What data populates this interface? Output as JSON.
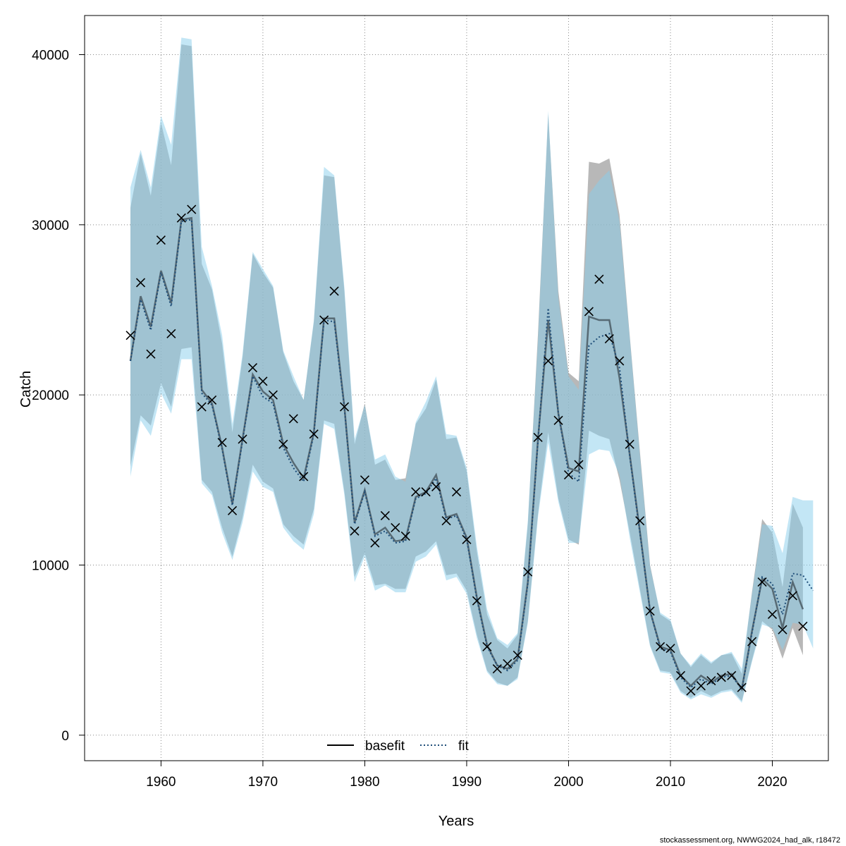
{
  "chart_data": {
    "type": "line",
    "xlabel": "Years",
    "ylabel": "Catch",
    "xlim": [
      1952.5,
      2025.5
    ],
    "ylim": [
      -1500,
      42300
    ],
    "x_ticks": [
      1960,
      1970,
      1980,
      1990,
      2000,
      2010,
      2020
    ],
    "y_ticks": [
      0,
      10000,
      20000,
      30000,
      40000
    ],
    "grid": true,
    "legend_position": "bottom-center",
    "colors": {
      "basefit_band": "#9a9a9a",
      "fit_band": "#87ceeb",
      "basefit_line": "#000000",
      "fit_line": "#1f4e79",
      "observed": "#000000"
    },
    "legend": [
      {
        "label": "basefit",
        "style": "solid"
      },
      {
        "label": "fit",
        "style": "dotted"
      }
    ],
    "basefit": {
      "name": "basefit",
      "x": [
        1957,
        1958,
        1959,
        1960,
        1961,
        1962,
        1963,
        1964,
        1965,
        1966,
        1967,
        1968,
        1969,
        1970,
        1971,
        1972,
        1973,
        1974,
        1975,
        1976,
        1977,
        1978,
        1979,
        1980,
        1981,
        1982,
        1983,
        1984,
        1985,
        1986,
        1987,
        1988,
        1989,
        1990,
        1991,
        1992,
        1993,
        1994,
        1995,
        1996,
        1997,
        1998,
        1999,
        2000,
        2001,
        2002,
        2003,
        2004,
        2005,
        2006,
        2007,
        2008,
        2009,
        2010,
        2011,
        2012,
        2013,
        2014,
        2015,
        2016,
        2017,
        2018,
        2019,
        2020,
        2021,
        2022,
        2023
      ],
      "mid": [
        22000,
        25800,
        24000,
        27300,
        25400,
        30300,
        30400,
        20300,
        19500,
        16900,
        13600,
        17400,
        21200,
        20200,
        19700,
        17100,
        16000,
        15100,
        17800,
        24500,
        24500,
        19300,
        12500,
        14400,
        11800,
        12200,
        11400,
        11500,
        14000,
        14300,
        15300,
        12800,
        13000,
        11600,
        8100,
        5300,
        4100,
        3900,
        4500,
        9000,
        17400,
        24400,
        18900,
        15700,
        15500,
        24600,
        24400,
        24400,
        21000,
        16500,
        12000,
        7300,
        5200,
        5000,
        3500,
        2900,
        3500,
        3100,
        3500,
        3600,
        2700,
        6100,
        9200,
        8600,
        6300,
        9000,
        7400
      ],
      "lo": [
        15800,
        18800,
        18200,
        20700,
        19300,
        22700,
        22800,
        15000,
        14300,
        12200,
        10500,
        12800,
        15900,
        14900,
        14500,
        12400,
        11700,
        11200,
        13300,
        18500,
        18300,
        14300,
        9300,
        10700,
        8800,
        8900,
        8600,
        8600,
        10500,
        10800,
        11400,
        9400,
        9500,
        8500,
        5900,
        3800,
        3100,
        2900,
        3400,
        6700,
        13000,
        17800,
        13900,
        11500,
        11200,
        17900,
        17600,
        17400,
        15000,
        11900,
        8600,
        5300,
        3800,
        3700,
        2600,
        2200,
        2600,
        2300,
        2600,
        2700,
        2000,
        4400,
        6700,
        6200,
        4500,
        6300,
        4700
      ],
      "hi": [
        31000,
        34200,
        31700,
        36000,
        33500,
        40600,
        40500,
        27700,
        26200,
        23000,
        17800,
        22200,
        28300,
        27200,
        26300,
        22500,
        20800,
        19700,
        24300,
        32900,
        32800,
        26100,
        17100,
        19500,
        15900,
        16200,
        15000,
        15100,
        18300,
        19200,
        20900,
        17400,
        17500,
        15500,
        10800,
        7100,
        5600,
        5100,
        5900,
        12400,
        23600,
        36500,
        26100,
        21300,
        20800,
        33700,
        33600,
        33900,
        30600,
        23500,
        16700,
        10000,
        7100,
        6700,
        4800,
        4000,
        4700,
        4200,
        4700,
        4800,
        3600,
        8400,
        12700,
        11900,
        8700,
        13600,
        12200
      ]
    },
    "fit": {
      "name": "fit",
      "x": [
        1957,
        1958,
        1959,
        1960,
        1961,
        1962,
        1963,
        1964,
        1965,
        1966,
        1967,
        1968,
        1969,
        1970,
        1971,
        1972,
        1973,
        1974,
        1975,
        1976,
        1977,
        1978,
        1979,
        1980,
        1981,
        1982,
        1983,
        1984,
        1985,
        1986,
        1987,
        1988,
        1989,
        1990,
        1991,
        1992,
        1993,
        1994,
        1995,
        1996,
        1997,
        1998,
        1999,
        2000,
        2001,
        2002,
        2003,
        2004,
        2005,
        2006,
        2007,
        2008,
        2009,
        2010,
        2011,
        2012,
        2013,
        2014,
        2015,
        2016,
        2017,
        2018,
        2019,
        2020,
        2021,
        2022,
        2023,
        2024
      ],
      "mid": [
        22000,
        25600,
        23800,
        27200,
        25200,
        30200,
        30300,
        20100,
        19400,
        16800,
        13500,
        17300,
        21100,
        19900,
        19500,
        16900,
        15700,
        14900,
        17700,
        24400,
        24300,
        19200,
        12400,
        14300,
        11700,
        12000,
        11300,
        11400,
        13900,
        14200,
        15100,
        12700,
        12900,
        11500,
        8000,
        5200,
        4100,
        3800,
        4400,
        8900,
        17300,
        25100,
        18900,
        15400,
        14900,
        22900,
        23400,
        23600,
        21600,
        16400,
        11900,
        7300,
        5100,
        4900,
        3400,
        2800,
        3300,
        3000,
        3400,
        3500,
        2700,
        6000,
        9300,
        8900,
        7100,
        9500,
        9400,
        8500
      ],
      "lo": [
        15200,
        18500,
        17600,
        20100,
        18900,
        22100,
        22100,
        14800,
        14100,
        11900,
        10300,
        12500,
        15500,
        14600,
        14300,
        12200,
        11400,
        10900,
        13000,
        18300,
        18000,
        14100,
        9000,
        10500,
        8500,
        8800,
        8400,
        8400,
        10200,
        10500,
        11200,
        9100,
        9300,
        8300,
        5700,
        3700,
        3000,
        2900,
        3300,
        6600,
        12800,
        17200,
        13700,
        11300,
        11300,
        16500,
        16800,
        16700,
        15300,
        11600,
        8400,
        5200,
        3700,
        3600,
        2500,
        2100,
        2400,
        2200,
        2500,
        2600,
        1900,
        4300,
        6500,
        6300,
        5000,
        6600,
        6500,
        5100
      ],
      "hi": [
        32200,
        34400,
        32200,
        36400,
        34700,
        41000,
        40900,
        28700,
        26400,
        23500,
        18300,
        22400,
        28400,
        27400,
        26400,
        22600,
        21100,
        19700,
        24400,
        33400,
        32900,
        26300,
        17400,
        19400,
        16200,
        16500,
        15200,
        14900,
        18400,
        19600,
        21100,
        17700,
        17600,
        15700,
        11100,
        7400,
        5700,
        5300,
        6000,
        12600,
        23200,
        36700,
        25700,
        21100,
        20300,
        31800,
        32600,
        33200,
        30200,
        23400,
        16500,
        9900,
        7200,
        6800,
        4800,
        4100,
        4800,
        4300,
        4700,
        4900,
        3900,
        8300,
        12400,
        12300,
        10700,
        14000,
        13800,
        13800
      ]
    },
    "observed": {
      "x": [
        1957,
        1958,
        1959,
        1960,
        1961,
        1962,
        1963,
        1964,
        1965,
        1966,
        1967,
        1968,
        1969,
        1970,
        1971,
        1972,
        1973,
        1974,
        1975,
        1976,
        1977,
        1978,
        1979,
        1980,
        1981,
        1982,
        1983,
        1984,
        1985,
        1986,
        1987,
        1988,
        1989,
        1990,
        1991,
        1992,
        1993,
        1994,
        1995,
        1996,
        1997,
        1998,
        1999,
        2000,
        2001,
        2002,
        2003,
        2004,
        2005,
        2006,
        2007,
        2008,
        2009,
        2010,
        2011,
        2012,
        2013,
        2014,
        2015,
        2016,
        2017,
        2018,
        2019,
        2020,
        2021,
        2022,
        2023
      ],
      "y": [
        23500,
        26600,
        22400,
        29100,
        23600,
        30400,
        30900,
        19300,
        19700,
        17200,
        13200,
        17400,
        21600,
        20800,
        20000,
        17100,
        18600,
        15200,
        17700,
        24400,
        26100,
        19300,
        12000,
        15000,
        11300,
        12900,
        12200,
        11700,
        14300,
        14300,
        14600,
        12600,
        14300,
        11500,
        7900,
        5200,
        3900,
        4200,
        4700,
        9600,
        17500,
        22000,
        18500,
        15300,
        15900,
        24900,
        26800,
        23300,
        22000,
        17100,
        12600,
        7300,
        5200,
        5100,
        3500,
        2600,
        2900,
        3200,
        3400,
        3500,
        2800,
        5500,
        9000,
        7100,
        6200,
        8200,
        6400
      ]
    }
  },
  "credit": "stockassessment.org, NWWG2024_had_alk, r18472"
}
